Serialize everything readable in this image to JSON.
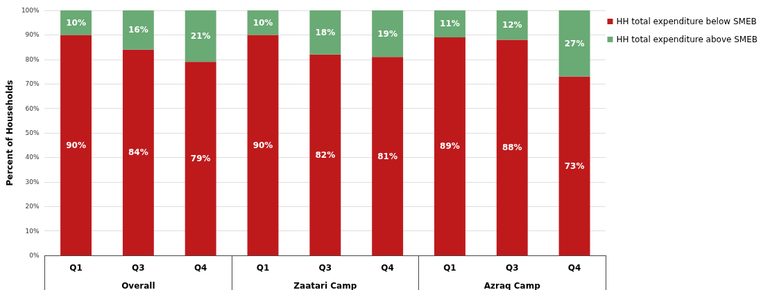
{
  "chart_data": {
    "type": "bar",
    "stacked": true,
    "ylabel": "Percent of Households",
    "categories": [
      "Q1",
      "Q3",
      "Q4",
      "Q1",
      "Q3",
      "Q4",
      "Q1",
      "Q3",
      "Q4"
    ],
    "annotations": [
      "Overall",
      "Zaatari Camp",
      "Azraq Camp"
    ],
    "series": [
      {
        "name": "HH total expenditure below SMEB",
        "color": "#be1a1c",
        "values": [
          90,
          84,
          79,
          90,
          82,
          81,
          89,
          88,
          73
        ],
        "value_labels": [
          "90%",
          "84%",
          "79%",
          "90%",
          "82%",
          "81%",
          "89%",
          "88%",
          "73%"
        ]
      },
      {
        "name": "HH total expenditure above SMEB",
        "color": "#6aaa75",
        "values": [
          10,
          16,
          21,
          10,
          18,
          19,
          11,
          12,
          27
        ],
        "value_labels": [
          "10%",
          "16%",
          "21%",
          "10%",
          "18%",
          "19%",
          "11%",
          "12%",
          "27%"
        ]
      }
    ],
    "ylim": [
      0,
      100
    ],
    "yticks": [
      {
        "value": 0,
        "label": "0%"
      },
      {
        "value": 10,
        "label": "10%"
      },
      {
        "value": 20,
        "label": "20%"
      },
      {
        "value": 30,
        "label": "30%"
      },
      {
        "value": 40,
        "label": "40%"
      },
      {
        "value": 50,
        "label": "50%"
      },
      {
        "value": 60,
        "label": "60%"
      },
      {
        "value": 70,
        "label": "70%"
      },
      {
        "value": 80,
        "label": "80%"
      },
      {
        "value": 90,
        "label": "90%"
      },
      {
        "value": 100,
        "label": "100%"
      }
    ],
    "grid": "y",
    "legend": "top right"
  }
}
